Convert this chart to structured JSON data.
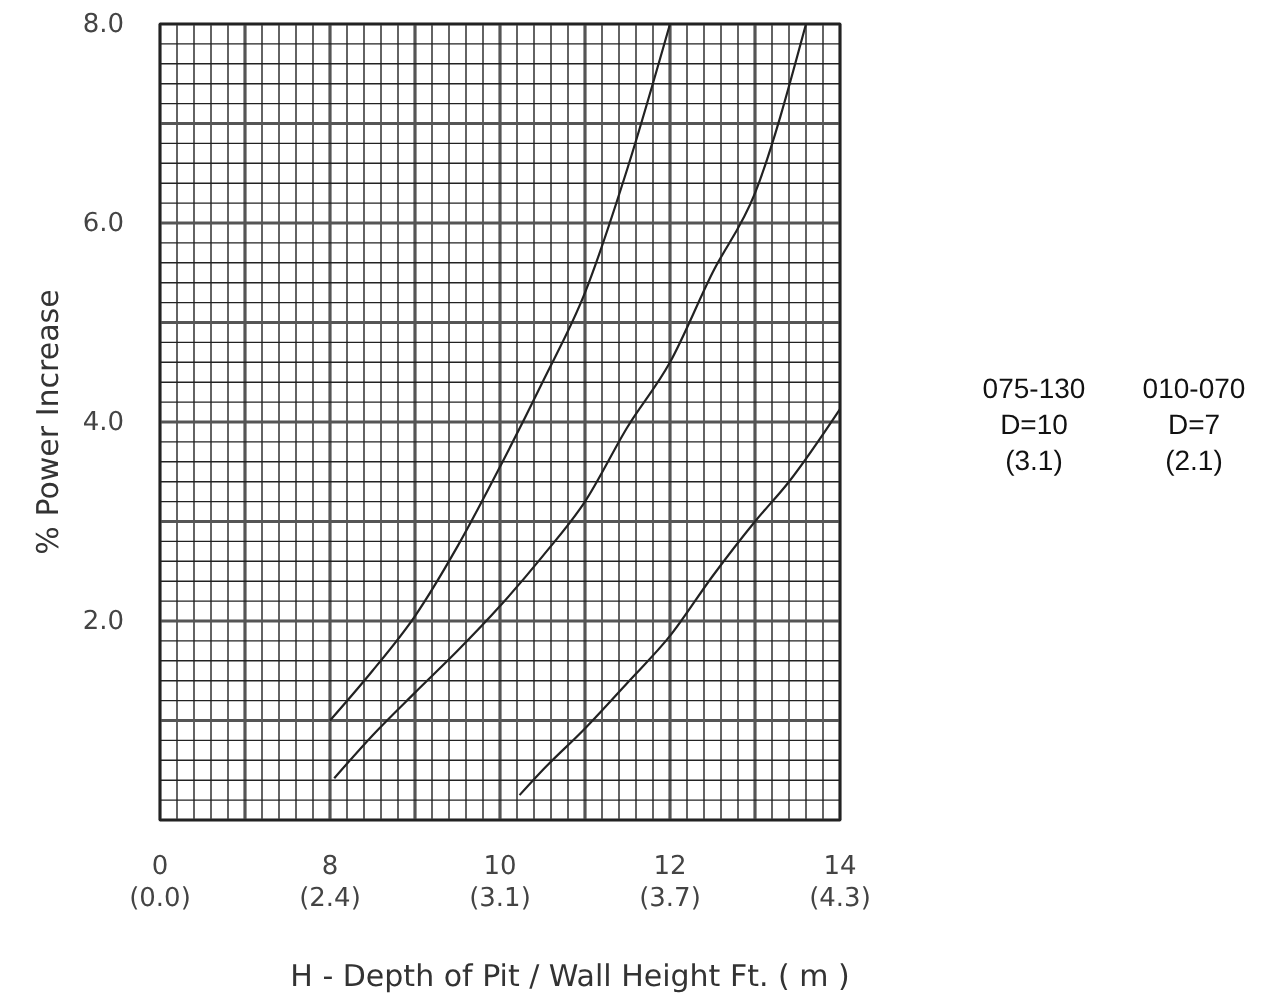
{
  "chart_data": {
    "type": "line",
    "xlabel": "H - Depth of Pit / Wall Height  Ft. ( m )",
    "ylabel": "% Power Increase",
    "xlim": [
      6,
      14
    ],
    "ylim": [
      0,
      8
    ],
    "xticks": [
      8,
      10,
      12,
      14
    ],
    "x2lim": [
      1.83,
      4.27
    ],
    "x2ticks": [
      {
        "value": 2.44,
        "label": "(2.4)"
      },
      {
        "value": 3.05,
        "label": "(3.1)"
      },
      {
        "value": 3.66,
        "label": "(3.7)"
      },
      {
        "value": 4.27,
        "label": "(4.3)"
      }
    ],
    "yticks": [
      {
        "value": 2,
        "label": "2.0"
      },
      {
        "value": 4,
        "label": "4.0"
      },
      {
        "value": 6,
        "label": "6.0"
      },
      {
        "value": 8,
        "label": "8.0"
      }
    ],
    "grid": true,
    "marker": "none",
    "line_style": "solid",
    "series": [
      {
        "color": "#222222",
        "x": [
          8,
          8.5,
          9,
          9.5,
          10,
          10.5,
          11,
          11.5,
          12
        ],
        "values": [
          1.0,
          1.5,
          2.05,
          2.75,
          3.55,
          4.4,
          5.3,
          6.55,
          8.0
        ]
      },
      {
        "color": "#222222",
        "x": [
          8.05,
          8.5,
          9,
          9.5,
          10,
          10.5,
          11,
          11.5,
          12,
          12.5,
          13,
          13.6
        ],
        "values": [
          0.42,
          0.85,
          1.28,
          1.7,
          2.15,
          2.65,
          3.2,
          3.95,
          4.6,
          5.5,
          6.3,
          8.0
        ]
      },
      {
        "color": "#222222",
        "x": [
          10.23,
          10.5,
          11,
          11.5,
          12,
          12.5,
          13,
          13.4,
          14
        ],
        "values": [
          0.25,
          0.5,
          0.92,
          1.38,
          1.85,
          2.45,
          3.0,
          3.4,
          4.13
        ]
      }
    ],
    "annotations": [
      "0\n(0.0)",
      "075-130\nD=10\n(3.1)",
      "010-070\nD=7\n(2.1)"
    ]
  }
}
